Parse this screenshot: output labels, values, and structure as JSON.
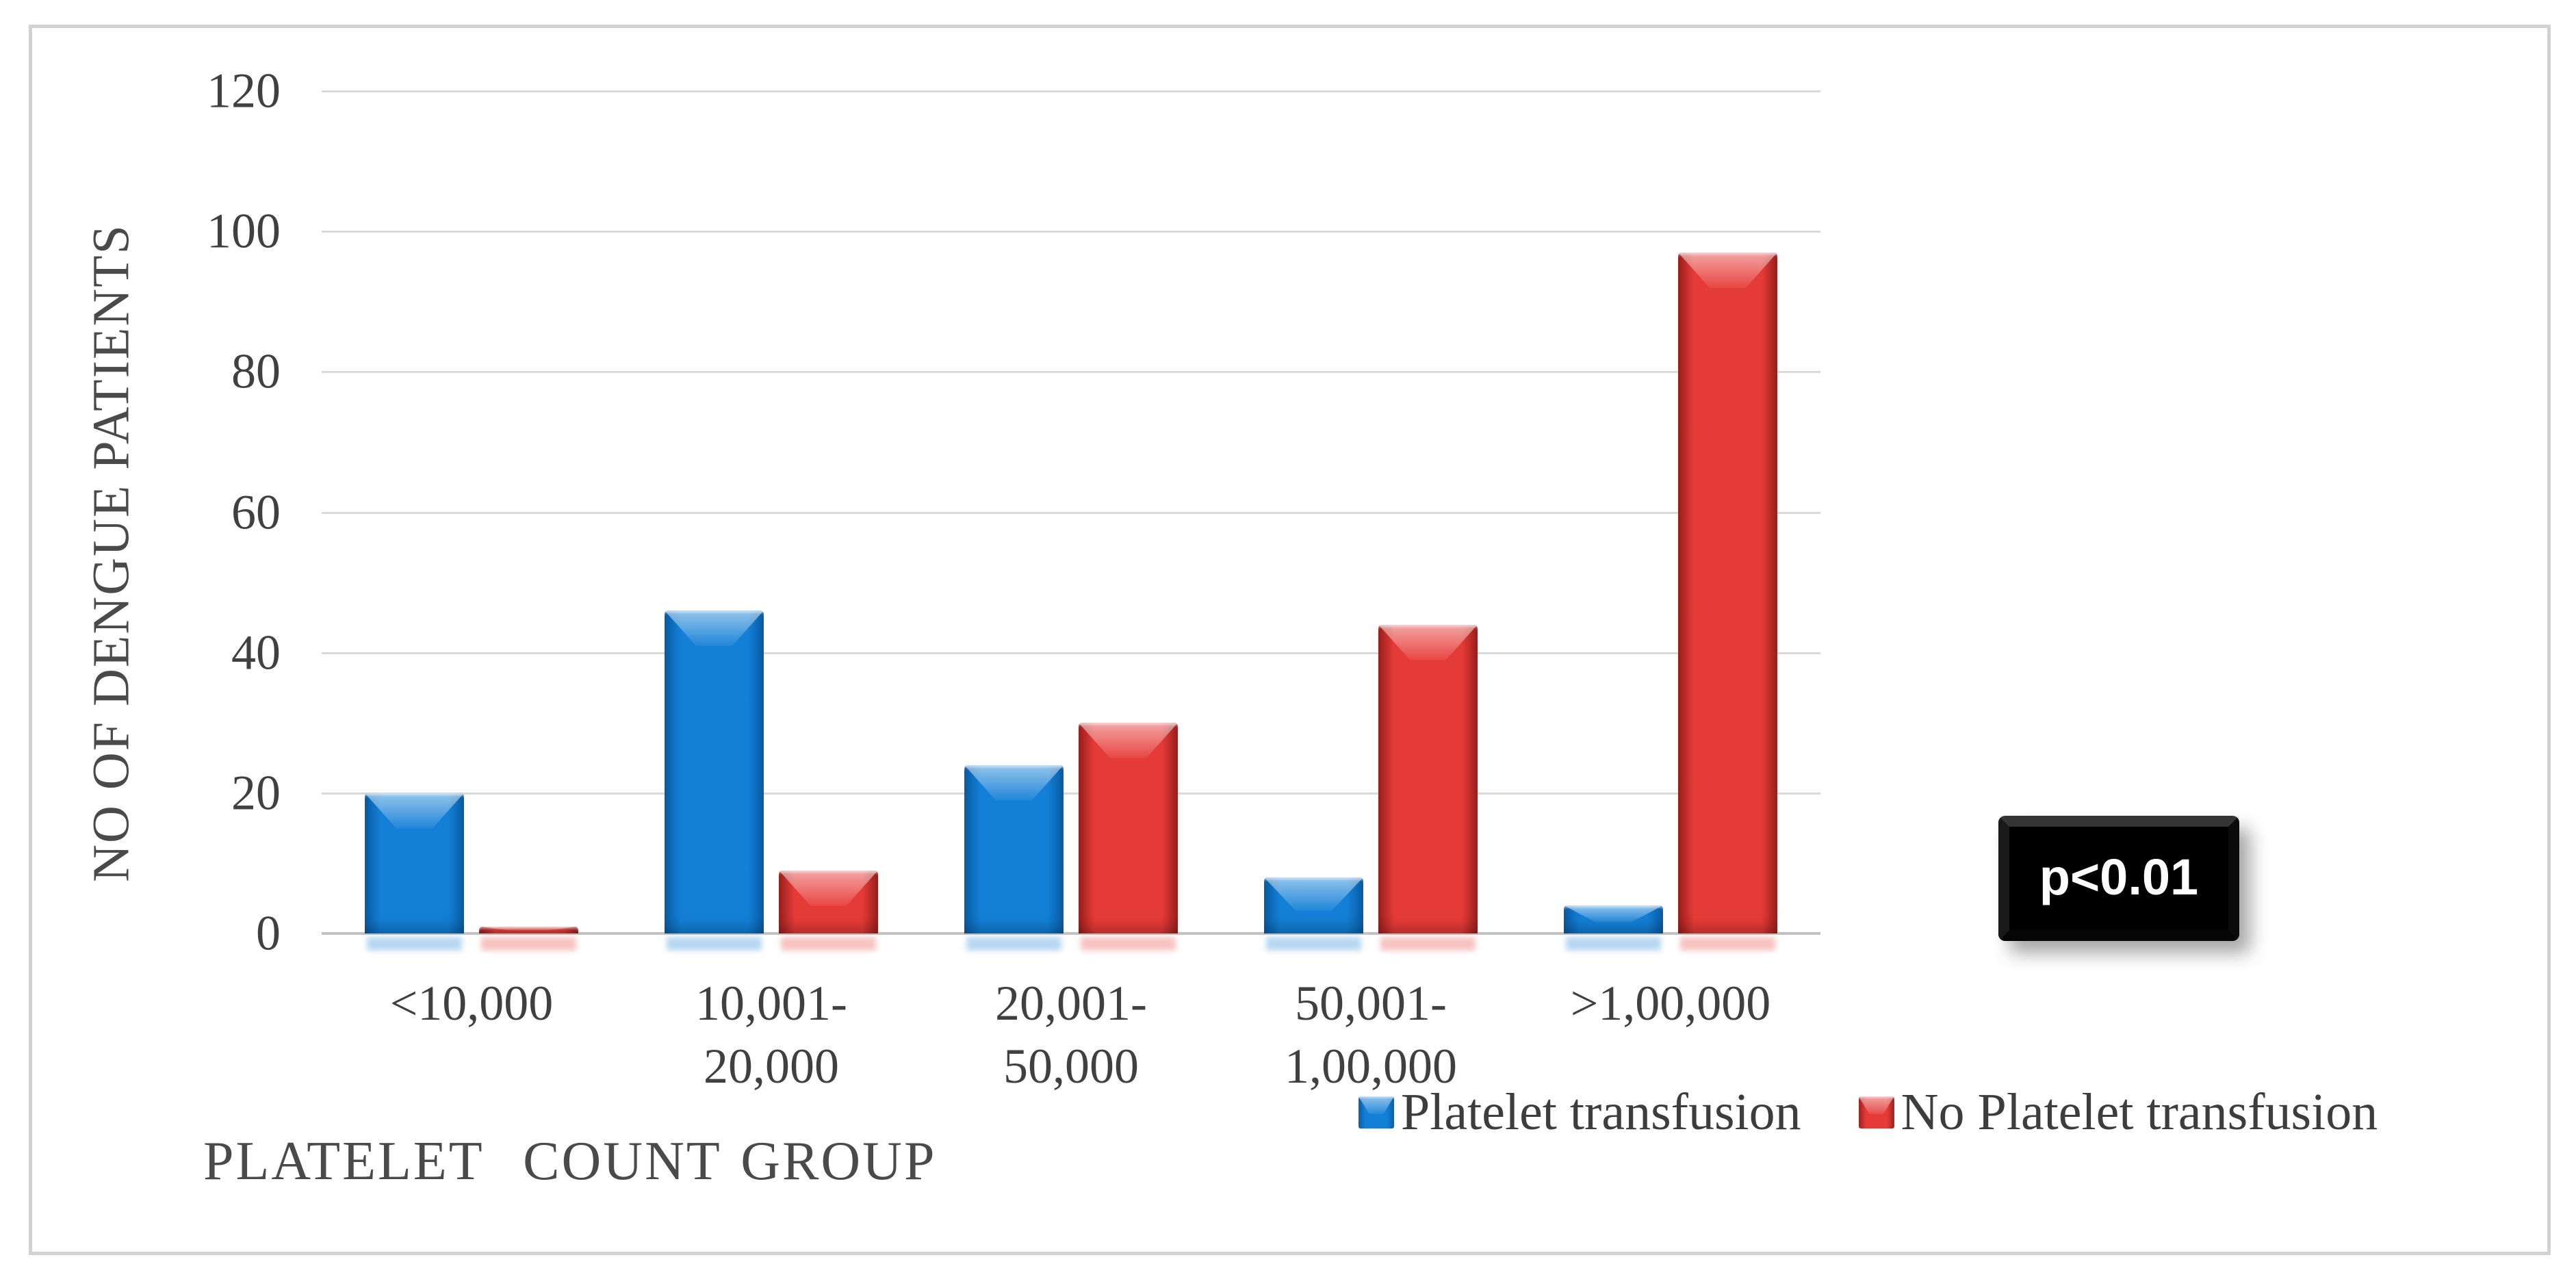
{
  "figure": {
    "frame_border_color": "#d2d2d2",
    "background": "#ffffff"
  },
  "chart_data": {
    "type": "bar",
    "title": "",
    "categories": [
      "<10,000",
      "10,001-\n20,000",
      "20,001-\n50,000",
      "50,001-\n1,00,000",
      ">1,00,000"
    ],
    "series": [
      {
        "name": "Platelet transfusion",
        "values": [
          20,
          46,
          24,
          8,
          4
        ],
        "color": "#137fd6",
        "color_light": "#4db0f2",
        "color_edge": "#0a5da6"
      },
      {
        "name": "No Platelet transfusion",
        "values": [
          1,
          9,
          30,
          44,
          97
        ],
        "color": "#e53b38",
        "color_light": "#f07a74",
        "color_edge": "#9c1f1c"
      }
    ],
    "xlabel": "PLATELET  COUNT GROUP",
    "ylabel": "NO OF DENGUE PATIENTS",
    "ylim": [
      0,
      120
    ],
    "yticks": [
      0,
      20,
      40,
      60,
      80,
      100,
      120
    ],
    "grid": true,
    "gridline_color": "#d9d9d9",
    "axis_text_color": "#404040",
    "legend_position": "bottom-right",
    "annotation": "p<0.01",
    "annotation_bg": "#000000",
    "annotation_text_color": "#ffffff"
  }
}
